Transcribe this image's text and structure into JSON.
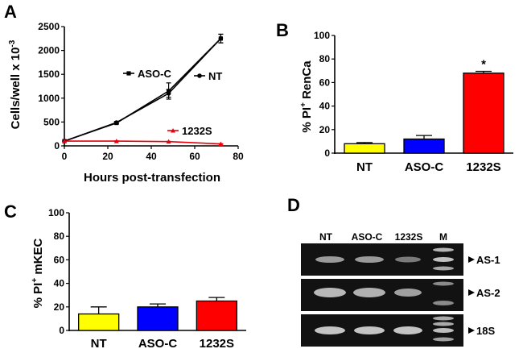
{
  "chart_data": [
    {
      "panel": "A",
      "type": "line",
      "xlabel": "Hours post-transfection",
      "ylabel": "Cells/well x 10",
      "ylabel_sup": "-3",
      "xlim": [
        0,
        80
      ],
      "ylim": [
        0,
        2500
      ],
      "xticks": [
        0,
        20,
        40,
        60,
        80
      ],
      "yticks": [
        0,
        500,
        1000,
        1500,
        2000,
        2500
      ],
      "grid": false,
      "series": [
        {
          "name": "ASO-C",
          "color": "#000000",
          "marker": "square",
          "x": [
            0,
            24,
            48,
            72
          ],
          "values": [
            100,
            480,
            1150,
            2250
          ],
          "err": [
            0,
            20,
            170,
            90
          ]
        },
        {
          "name": "NT",
          "color": "#000000",
          "marker": "circle",
          "x": [
            0,
            24,
            48,
            72
          ],
          "values": [
            100,
            490,
            1100,
            2250
          ],
          "err": [
            0,
            20,
            80,
            90
          ]
        },
        {
          "name": "1232S",
          "color": "#e8000b",
          "marker": "triangle",
          "x": [
            0,
            24,
            48,
            72
          ],
          "values": [
            100,
            100,
            90,
            40
          ],
          "err": [
            0,
            5,
            5,
            5
          ]
        }
      ]
    },
    {
      "panel": "B",
      "type": "bar",
      "ylabel_prefix": "% PI",
      "ylabel_sup": "+",
      "ylabel_suffix": " RenCa",
      "categories": [
        "NT",
        "ASO-C",
        "1232S"
      ],
      "values": [
        8,
        12,
        68
      ],
      "errors": [
        1,
        3,
        1.5
      ],
      "colors": [
        "#ffff00",
        "#0000ff",
        "#ff0000"
      ],
      "ylim": [
        0,
        100
      ],
      "yticks": [
        0,
        20,
        40,
        60,
        80,
        100
      ],
      "annotation": "*"
    },
    {
      "panel": "C",
      "type": "bar",
      "ylabel_prefix": "% PI",
      "ylabel_sup": "+",
      "ylabel_suffix": " mKEC",
      "categories": [
        "NT",
        "ASO-C",
        "1232S"
      ],
      "values": [
        14,
        20,
        25
      ],
      "errors": [
        6,
        2.5,
        3
      ],
      "colors": [
        "#ffff00",
        "#0000ff",
        "#ff0000"
      ],
      "ylim": [
        0,
        100
      ],
      "yticks": [
        0,
        20,
        40,
        60,
        80,
        100
      ]
    }
  ],
  "gel": {
    "panel": "D",
    "lanes": [
      "NT",
      "ASO-C",
      "1232S",
      "M"
    ],
    "bands": [
      "AS-1",
      "AS-2",
      "18S"
    ]
  }
}
